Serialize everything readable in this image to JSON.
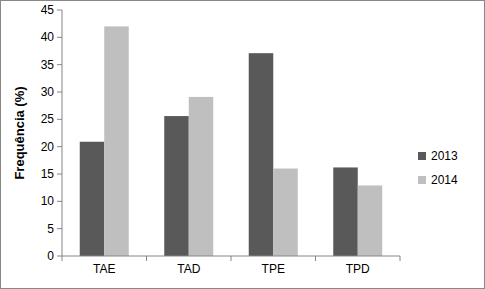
{
  "chart_data": {
    "type": "bar",
    "y_label": "Frequência (%)",
    "categories": [
      "TAE",
      "TAD",
      "TPE",
      "TPD"
    ],
    "series": [
      {
        "name": "2013",
        "color": "#595959",
        "values": [
          20.9,
          25.6,
          37.1,
          16.2
        ]
      },
      {
        "name": "2014",
        "color": "#bfbfbf",
        "values": [
          42,
          29.1,
          16,
          12.9
        ]
      }
    ],
    "ylim": [
      0,
      45
    ],
    "yticks": [
      0,
      5,
      10,
      15,
      20,
      25,
      30,
      35,
      40,
      45
    ],
    "grid": false,
    "legend": "right"
  }
}
